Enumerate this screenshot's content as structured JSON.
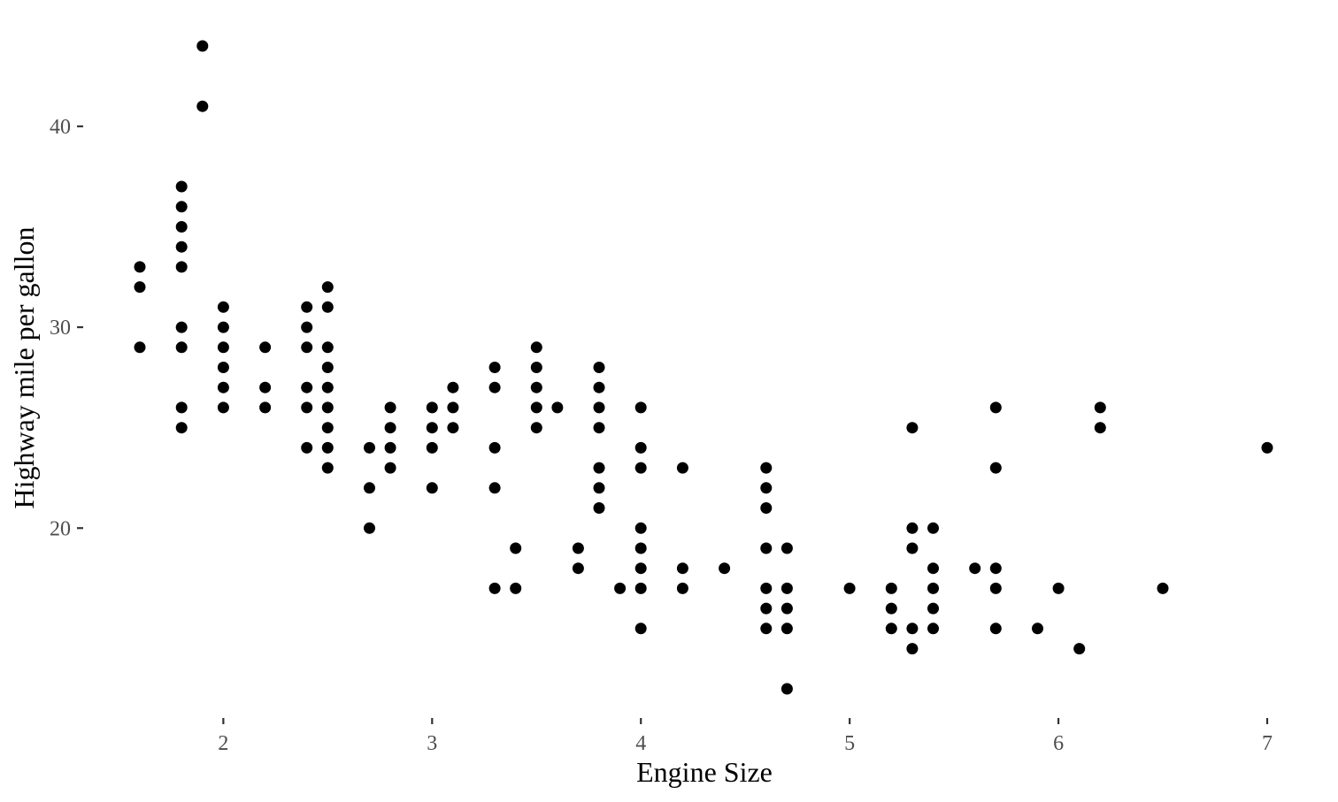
{
  "chart_data": {
    "type": "scatter",
    "title": "",
    "xlabel": "Engine Size",
    "ylabel": "Highway mile per gallon",
    "xlim": [
      1.6,
      7.0
    ],
    "ylim": [
      12,
      44
    ],
    "x_ticks": [
      2,
      3,
      4,
      5,
      6,
      7
    ],
    "y_ticks": [
      20,
      30,
      40
    ],
    "grid": false,
    "legend": "none",
    "point_color": "#000000",
    "points": [
      [
        1.6,
        33
      ],
      [
        1.6,
        32
      ],
      [
        1.6,
        29
      ],
      [
        1.8,
        37
      ],
      [
        1.8,
        36
      ],
      [
        1.8,
        35
      ],
      [
        1.8,
        34
      ],
      [
        1.8,
        33
      ],
      [
        1.8,
        30
      ],
      [
        1.8,
        29
      ],
      [
        1.8,
        26
      ],
      [
        1.8,
        25
      ],
      [
        1.9,
        44
      ],
      [
        1.9,
        41
      ],
      [
        2.0,
        31
      ],
      [
        2.0,
        30
      ],
      [
        2.0,
        29
      ],
      [
        2.0,
        28
      ],
      [
        2.0,
        27
      ],
      [
        2.0,
        26
      ],
      [
        2.2,
        29
      ],
      [
        2.2,
        27
      ],
      [
        2.2,
        26
      ],
      [
        2.4,
        31
      ],
      [
        2.4,
        30
      ],
      [
        2.4,
        29
      ],
      [
        2.4,
        27
      ],
      [
        2.4,
        26
      ],
      [
        2.4,
        24
      ],
      [
        2.5,
        32
      ],
      [
        2.5,
        31
      ],
      [
        2.5,
        29
      ],
      [
        2.5,
        28
      ],
      [
        2.5,
        27
      ],
      [
        2.5,
        26
      ],
      [
        2.5,
        25
      ],
      [
        2.5,
        24
      ],
      [
        2.5,
        23
      ],
      [
        2.7,
        24
      ],
      [
        2.7,
        22
      ],
      [
        2.7,
        20
      ],
      [
        2.8,
        26
      ],
      [
        2.8,
        25
      ],
      [
        2.8,
        24
      ],
      [
        2.8,
        23
      ],
      [
        3.0,
        26
      ],
      [
        3.0,
        25
      ],
      [
        3.0,
        24
      ],
      [
        3.0,
        22
      ],
      [
        3.1,
        27
      ],
      [
        3.1,
        26
      ],
      [
        3.1,
        25
      ],
      [
        3.3,
        28
      ],
      [
        3.3,
        27
      ],
      [
        3.3,
        24
      ],
      [
        3.3,
        22
      ],
      [
        3.3,
        17
      ],
      [
        3.4,
        19
      ],
      [
        3.4,
        17
      ],
      [
        3.5,
        29
      ],
      [
        3.5,
        28
      ],
      [
        3.5,
        27
      ],
      [
        3.5,
        26
      ],
      [
        3.5,
        25
      ],
      [
        3.6,
        26
      ],
      [
        3.7,
        19
      ],
      [
        3.7,
        18
      ],
      [
        3.8,
        28
      ],
      [
        3.8,
        27
      ],
      [
        3.8,
        26
      ],
      [
        3.8,
        25
      ],
      [
        3.8,
        23
      ],
      [
        3.8,
        22
      ],
      [
        3.8,
        21
      ],
      [
        3.9,
        17
      ],
      [
        4.0,
        26
      ],
      [
        4.0,
        24
      ],
      [
        4.0,
        23
      ],
      [
        4.0,
        20
      ],
      [
        4.0,
        19
      ],
      [
        4.0,
        18
      ],
      [
        4.0,
        17
      ],
      [
        4.0,
        15
      ],
      [
        4.2,
        23
      ],
      [
        4.2,
        18
      ],
      [
        4.2,
        17
      ],
      [
        4.4,
        18
      ],
      [
        4.6,
        23
      ],
      [
        4.6,
        22
      ],
      [
        4.6,
        21
      ],
      [
        4.6,
        19
      ],
      [
        4.6,
        17
      ],
      [
        4.6,
        16
      ],
      [
        4.6,
        15
      ],
      [
        4.7,
        19
      ],
      [
        4.7,
        17
      ],
      [
        4.7,
        16
      ],
      [
        4.7,
        15
      ],
      [
        4.7,
        12
      ],
      [
        5.0,
        17
      ],
      [
        5.2,
        17
      ],
      [
        5.2,
        16
      ],
      [
        5.2,
        15
      ],
      [
        5.3,
        25
      ],
      [
        5.3,
        20
      ],
      [
        5.3,
        19
      ],
      [
        5.3,
        15
      ],
      [
        5.3,
        14
      ],
      [
        5.4,
        20
      ],
      [
        5.4,
        18
      ],
      [
        5.4,
        17
      ],
      [
        5.4,
        16
      ],
      [
        5.4,
        15
      ],
      [
        5.6,
        18
      ],
      [
        5.7,
        26
      ],
      [
        5.7,
        23
      ],
      [
        5.7,
        18
      ],
      [
        5.7,
        17
      ],
      [
        5.7,
        15
      ],
      [
        5.9,
        15
      ],
      [
        6.0,
        17
      ],
      [
        6.1,
        14
      ],
      [
        6.2,
        26
      ],
      [
        6.2,
        25
      ],
      [
        6.5,
        17
      ],
      [
        7.0,
        24
      ]
    ]
  }
}
